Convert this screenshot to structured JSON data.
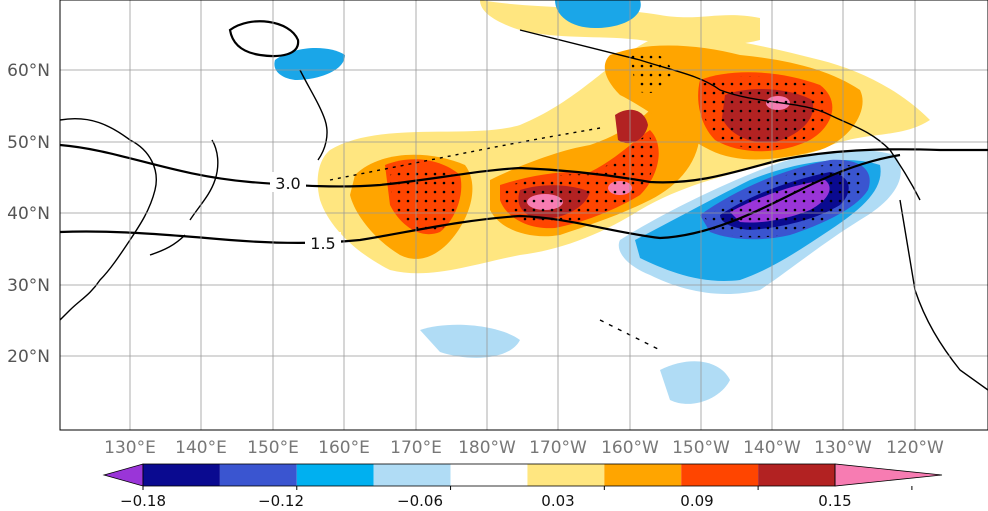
{
  "map": {
    "lat_labels": [
      "60°N",
      "50°N",
      "40°N",
      "30°N",
      "20°N"
    ],
    "lon_labels": [
      "130°E",
      "140°E",
      "150°E",
      "160°E",
      "170°E",
      "180°W",
      "170°W",
      "160°W",
      "150°W",
      "140°W",
      "130°W",
      "120°W"
    ],
    "contour_labels": [
      "3.0",
      "1.5"
    ],
    "colors": {
      "strong_positive": "#f77cb2",
      "positive_4": "#b22222",
      "positive_3": "#ff4500",
      "positive_2": "#ffa500",
      "positive_1": "#ffe680",
      "negative_1": "#b0dcf5",
      "negative_2": "#1aa6e8",
      "negative_3": "#3a55d0",
      "negative_4": "#0a0a90",
      "strong_negative": "#9a35d8",
      "coastline": "#000000",
      "grid": "#999999"
    }
  },
  "colorbar": {
    "tick_labels": [
      "−0.18",
      "−0.12",
      "−0.06",
      "0.03",
      "0.09",
      "0.15"
    ],
    "bins": [
      "#9a35d8",
      "#0a0a90",
      "#3a55d0",
      "#00b0f0",
      "#b0dcf5",
      "#ffffff",
      "#ffe680",
      "#ffa500",
      "#ff4500",
      "#b22222",
      "#f77cb2"
    ]
  }
}
